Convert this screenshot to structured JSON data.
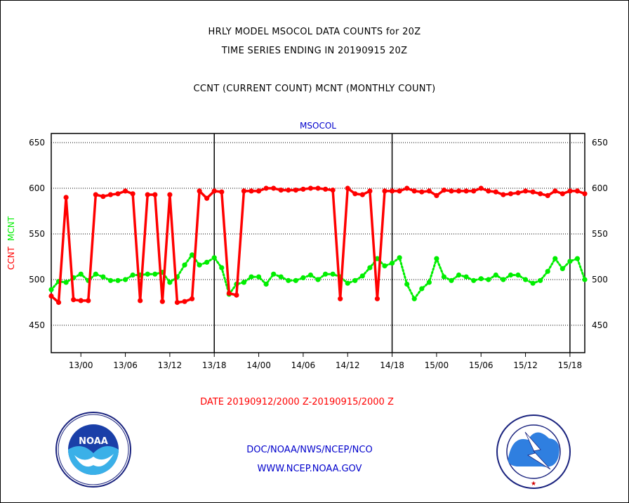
{
  "header": {
    "title_line1": "HRLY MODEL MSOCOL DATA COUNTS for 20Z",
    "title_line2": "TIME SERIES ENDING IN 20190915 20Z",
    "subtitle": "CCNT (CURRENT COUNT) MCNT (MONTHLY COUNT)"
  },
  "footer": {
    "date_range": "DATE 20190912/2000 Z-20190915/2000 Z",
    "org": "DOC/NOAA/NWS/NCEP/NCO",
    "url": "WWW.NCEP.NOAA.GOV",
    "noaa_logo_text": "NOAA",
    "nws_logo_text": "NATIONAL WEATHER SERVICE"
  },
  "colors": {
    "ccnt": "#ff0000",
    "mcnt": "#00ee00",
    "plot_label": "#0000cc",
    "text": "#000000"
  },
  "chart_data": {
    "type": "line",
    "title": "MSOCOL",
    "ylabel_parts": [
      "CCNT",
      "MCNT"
    ],
    "ylim": [
      420,
      660
    ],
    "yticks": [
      450,
      500,
      550,
      600,
      650
    ],
    "grid": true,
    "xlim_hours": [
      0,
      72
    ],
    "x_start": "2019091220",
    "xticks": [
      {
        "hour": 4,
        "label": "13/00"
      },
      {
        "hour": 10,
        "label": "13/06"
      },
      {
        "hour": 16,
        "label": "13/12"
      },
      {
        "hour": 22,
        "label": "13/18"
      },
      {
        "hour": 28,
        "label": "14/00"
      },
      {
        "hour": 34,
        "label": "14/06"
      },
      {
        "hour": 40,
        "label": "14/12"
      },
      {
        "hour": 46,
        "label": "14/18"
      },
      {
        "hour": 52,
        "label": "15/00"
      },
      {
        "hour": 58,
        "label": "15/06"
      },
      {
        "hour": 64,
        "label": "15/12"
      },
      {
        "hour": 70,
        "label": "15/18"
      }
    ],
    "vlines_hours": [
      22,
      46,
      70
    ],
    "series": [
      {
        "name": "CCNT",
        "color": "#ff0000",
        "style": "solid",
        "values": [
          482,
          475,
          590,
          478,
          477,
          477,
          593,
          591,
          593,
          594,
          597,
          594,
          477,
          593,
          593,
          476,
          593,
          475,
          476,
          479,
          597,
          589,
          597,
          596,
          485,
          483,
          597,
          597,
          597,
          600,
          600,
          598,
          598,
          598,
          599,
          600,
          600,
          599,
          598,
          479,
          600,
          594,
          593,
          597,
          479,
          597,
          597,
          597,
          600,
          597,
          596,
          597,
          592,
          598,
          597,
          597,
          597,
          597,
          600,
          597,
          596,
          593,
          594,
          595,
          597,
          596,
          594,
          592,
          597,
          594,
          597,
          597,
          594
        ]
      },
      {
        "name": "MCNT",
        "color": "#00ee00",
        "style": "dotted",
        "values": [
          489,
          498,
          497,
          502,
          506,
          499,
          506,
          503,
          499,
          499,
          500,
          505,
          505,
          506,
          506,
          508,
          497,
          503,
          516,
          527,
          516,
          519,
          524,
          513,
          484,
          495,
          497,
          503,
          503,
          495,
          506,
          503,
          499,
          499,
          502,
          505,
          500,
          506,
          506,
          503,
          496,
          499,
          504,
          513,
          523,
          515,
          518,
          524,
          495,
          479,
          490,
          497,
          523,
          503,
          499,
          505,
          503,
          499,
          501,
          500,
          505,
          500,
          505,
          505,
          500,
          496,
          499,
          509,
          523,
          512,
          520,
          523,
          500
        ]
      }
    ]
  }
}
